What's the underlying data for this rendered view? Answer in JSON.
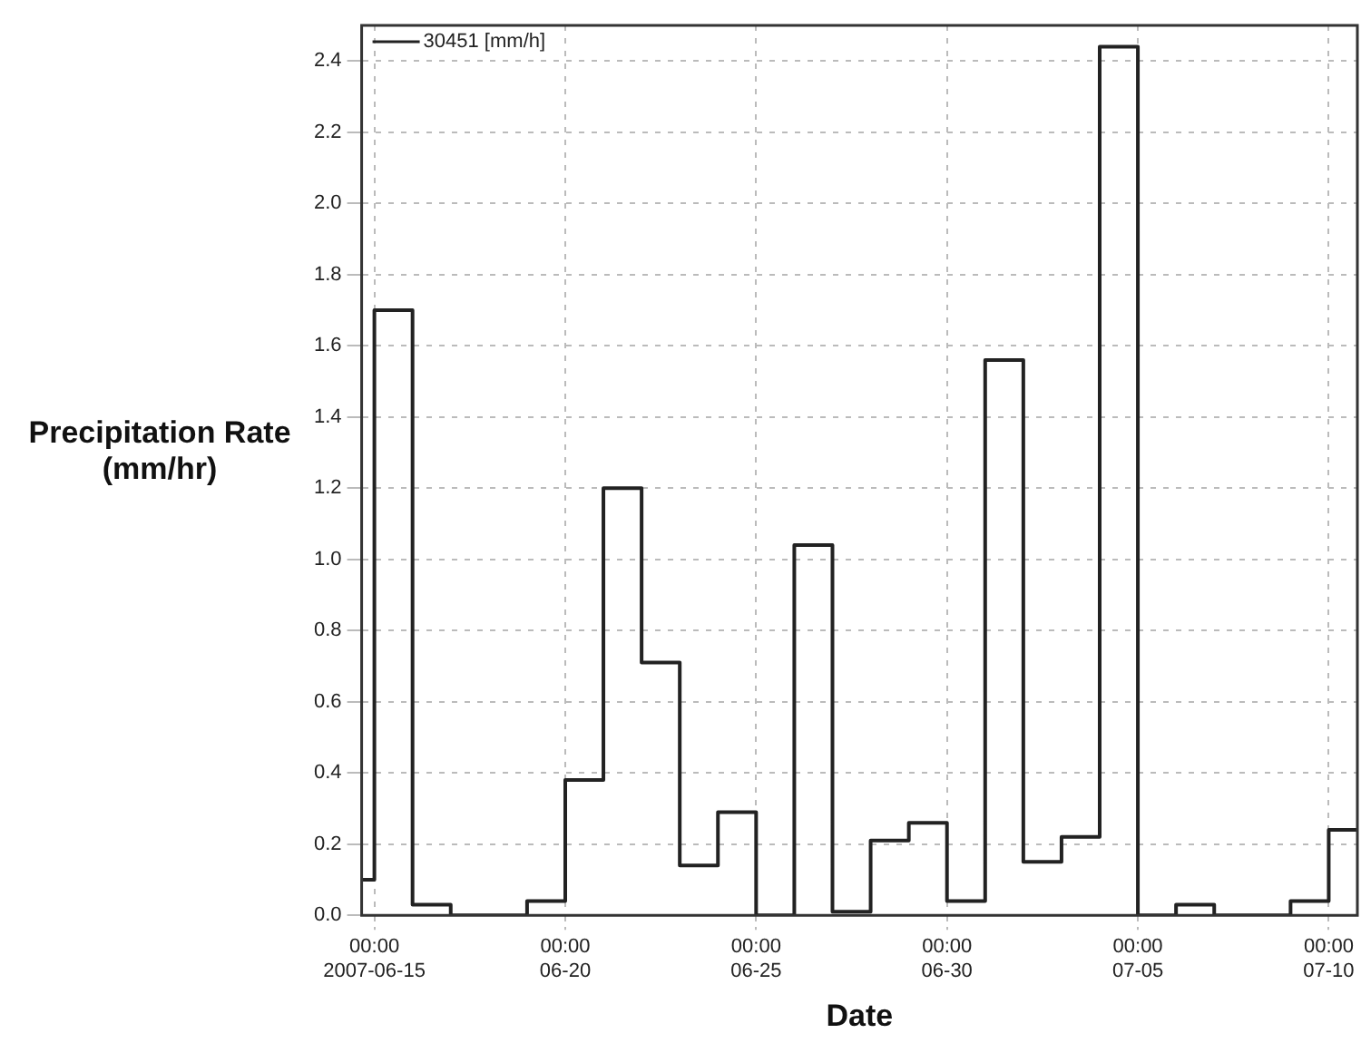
{
  "chart_data": {
    "type": "step",
    "xlabel": "Date",
    "ylabel": "Precipitation Rate (mm/hr)",
    "x": [
      "2007-06-14T16:00",
      "2007-06-15",
      "2007-06-16",
      "2007-06-17",
      "2007-06-18",
      "2007-06-19",
      "2007-06-20",
      "2007-06-21",
      "2007-06-22",
      "2007-06-23",
      "2007-06-24",
      "2007-06-25",
      "2007-06-26",
      "2007-06-27",
      "2007-06-28",
      "2007-06-29",
      "2007-06-30",
      "2007-07-01",
      "2007-07-02",
      "2007-07-03",
      "2007-07-04",
      "2007-07-05",
      "2007-07-06",
      "2007-07-07",
      "2007-07-08",
      "2007-07-09",
      "2007-07-10",
      "2007-07-10T18:00"
    ],
    "series": [
      {
        "name": "30451 [mm/h]",
        "color": "#222222",
        "values": [
          0.1,
          1.7,
          0.03,
          0,
          0,
          0.04,
          0.38,
          1.2,
          0.71,
          0.14,
          0.29,
          0,
          1.04,
          0.01,
          0.21,
          0.26,
          0.04,
          1.56,
          0.15,
          0.22,
          2.44,
          0,
          0.03,
          0,
          0,
          0.04,
          0.24,
          0.24
        ]
      }
    ],
    "xlim": [
      "2007-06-14T16:00",
      "2007-07-10T18:00"
    ],
    "xticks": [
      {
        "value": "2007-06-15",
        "label": "00:00 2007-06-15"
      },
      {
        "value": "2007-06-20",
        "label": "00:00 06-20"
      },
      {
        "value": "2007-06-25",
        "label": "00:00 06-25"
      },
      {
        "value": "2007-06-30",
        "label": "00:00 06-30"
      },
      {
        "value": "2007-07-05",
        "label": "00:00 07-05"
      },
      {
        "value": "2007-07-10",
        "label": "00:00 07-10"
      }
    ],
    "ylim": [
      0,
      2.5
    ],
    "yticks": [
      {
        "value": 0,
        "label": "0.0"
      },
      0.2,
      0.4,
      0.6,
      0.8,
      {
        "value": 1,
        "label": "1.0"
      },
      1.2,
      1.4,
      1.6,
      1.8,
      {
        "value": 2,
        "label": "2.0"
      },
      2.2,
      2.4
    ],
    "grid": true,
    "legend": "top left",
    "line_style": "solid",
    "marker": "none"
  }
}
